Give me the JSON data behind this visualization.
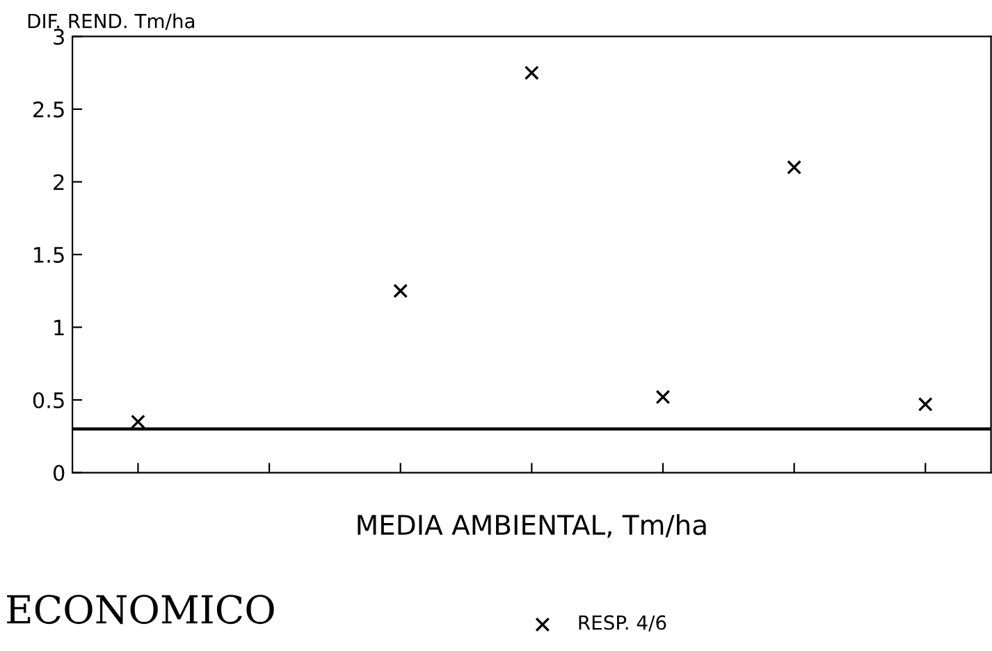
{
  "chart_data": {
    "type": "scatter",
    "ylabel": "DIF. REND. Tm/ha",
    "xlabel": "MEDIA AMBIENTAL, Tm/ha",
    "categories": [
      null,
      null,
      null,
      null,
      null,
      null,
      null
    ],
    "series": [
      {
        "name": "RESP. 4/6",
        "color": "#000000",
        "values": [
          0.35,
          null,
          1.25,
          2.75,
          0.52,
          2.1,
          0.47
        ]
      }
    ],
    "ylim": [
      0,
      3
    ],
    "yticks": [
      0,
      0.5,
      1,
      1.5,
      2,
      2.5,
      3
    ],
    "ref_lines": [
      {
        "axis": "y",
        "value": 0.3,
        "color": "#000000"
      }
    ],
    "annotations": [
      "ECONOMICO"
    ],
    "marker": "cross",
    "legend": "bottom",
    "grid": false
  }
}
